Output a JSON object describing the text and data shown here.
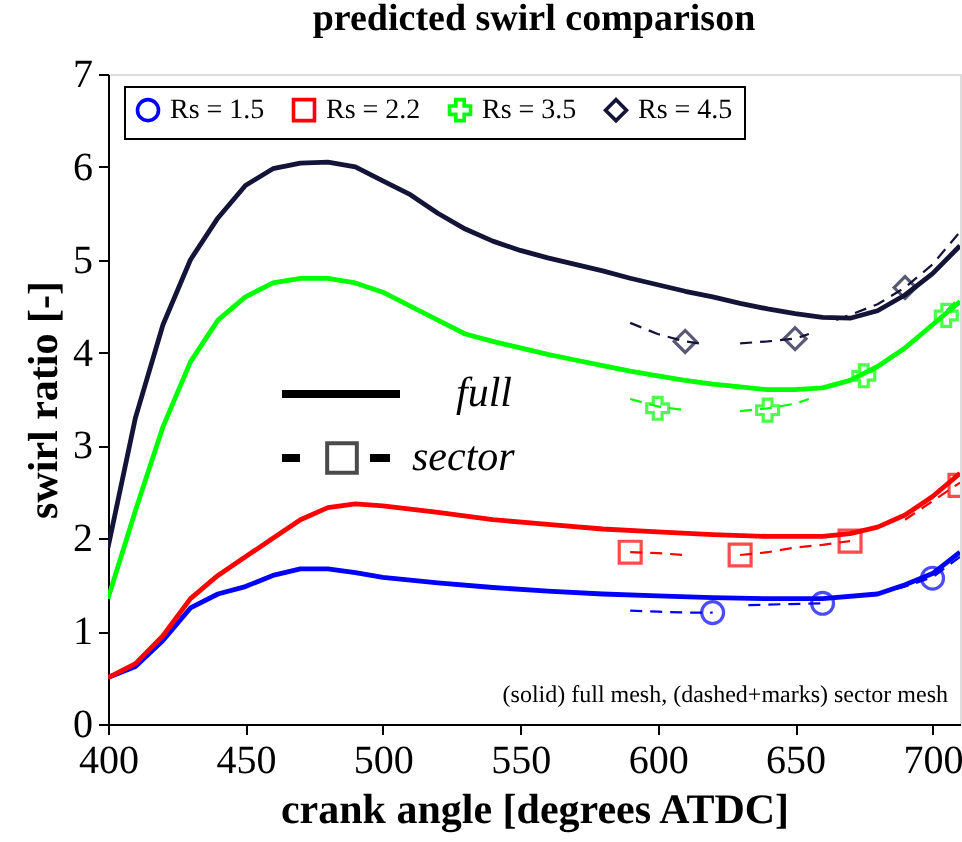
{
  "chart_data": {
    "type": "line",
    "title": "predicted swirl comparison",
    "xlabel": "crank angle [degrees ATDC]",
    "ylabel": "swirl ratio [-]",
    "xlim": [
      400,
      710
    ],
    "ylim": [
      0,
      7
    ],
    "xticks": [
      400,
      450,
      500,
      550,
      600,
      650,
      700
    ],
    "yticks": [
      0,
      1,
      2,
      3,
      4,
      5,
      6,
      7
    ],
    "grid": false,
    "legend": "top",
    "annotations": [
      "full",
      "sector",
      "(solid) full mesh, (dashed+marks) sector mesh"
    ],
    "series": [
      {
        "name": "Rs = 1.5",
        "color": "#0000ff",
        "line_style": "solid",
        "marker": "none",
        "x": [
          400,
          410,
          420,
          430,
          440,
          450,
          460,
          470,
          480,
          490,
          500,
          520,
          540,
          560,
          580,
          600,
          620,
          640,
          660,
          680,
          690,
          700,
          710
        ],
        "values": [
          0.5,
          0.62,
          0.9,
          1.25,
          1.4,
          1.48,
          1.6,
          1.67,
          1.67,
          1.63,
          1.58,
          1.52,
          1.47,
          1.43,
          1.4,
          1.38,
          1.36,
          1.35,
          1.35,
          1.4,
          1.5,
          1.62,
          1.85
        ]
      },
      {
        "name": "Rs = 2.2",
        "color": "#ff0000",
        "line_style": "solid",
        "marker": "none",
        "x": [
          400,
          410,
          420,
          430,
          440,
          450,
          460,
          470,
          480,
          490,
          500,
          520,
          540,
          560,
          580,
          600,
          620,
          640,
          660,
          670,
          680,
          690,
          700,
          710
        ],
        "values": [
          0.5,
          0.65,
          0.95,
          1.35,
          1.6,
          1.8,
          2.0,
          2.2,
          2.33,
          2.37,
          2.35,
          2.28,
          2.2,
          2.15,
          2.1,
          2.07,
          2.04,
          2.02,
          2.02,
          2.05,
          2.12,
          2.25,
          2.45,
          2.7
        ]
      },
      {
        "name": "Rs = 3.5",
        "color": "#00ff00",
        "line_style": "solid",
        "marker": "none",
        "x": [
          400,
          410,
          420,
          430,
          440,
          450,
          460,
          470,
          480,
          490,
          500,
          510,
          520,
          530,
          540,
          550,
          560,
          570,
          580,
          590,
          600,
          610,
          620,
          630,
          640,
          650,
          660,
          670,
          680,
          690,
          700,
          710
        ],
        "values": [
          1.35,
          2.3,
          3.2,
          3.9,
          4.35,
          4.6,
          4.75,
          4.8,
          4.8,
          4.75,
          4.65,
          4.5,
          4.35,
          4.2,
          4.12,
          4.05,
          3.98,
          3.92,
          3.86,
          3.8,
          3.75,
          3.7,
          3.66,
          3.63,
          3.6,
          3.6,
          3.62,
          3.7,
          3.85,
          4.05,
          4.3,
          4.55
        ]
      },
      {
        "name": "Rs = 4.5",
        "color": "#141438",
        "line_style": "solid",
        "marker": "none",
        "x": [
          400,
          410,
          420,
          430,
          440,
          450,
          460,
          470,
          480,
          490,
          500,
          510,
          520,
          530,
          540,
          550,
          560,
          570,
          580,
          590,
          600,
          610,
          620,
          630,
          640,
          650,
          660,
          670,
          680,
          690,
          700,
          710
        ],
        "values": [
          1.9,
          3.3,
          4.3,
          5.0,
          5.45,
          5.8,
          5.98,
          6.04,
          6.05,
          6.0,
          5.85,
          5.7,
          5.5,
          5.33,
          5.2,
          5.1,
          5.02,
          4.95,
          4.88,
          4.8,
          4.73,
          4.66,
          4.6,
          4.53,
          4.47,
          4.42,
          4.38,
          4.37,
          4.45,
          4.62,
          4.85,
          5.15
        ]
      },
      {
        "color": "#0000ff",
        "line_style": "dashed",
        "marker": "none",
        "x": [
          590,
          600,
          610,
          620,
          625,
          633,
          645,
          660,
          670,
          680,
          690,
          700,
          710
        ],
        "values": [
          1.22,
          1.21,
          1.2,
          1.2,
          null,
          1.28,
          1.29,
          1.3,
          null,
          1.4,
          1.48,
          1.58,
          1.8
        ]
      },
      {
        "color": "#ff0000",
        "line_style": "dashed",
        "marker": "none",
        "x": [
          590,
          600,
          610,
          620,
          630,
          640,
          650,
          660,
          670,
          680,
          690,
          700,
          710
        ],
        "values": [
          1.85,
          1.84,
          1.82,
          null,
          1.82,
          1.85,
          1.9,
          1.93,
          1.97,
          null,
          2.2,
          2.4,
          2.6
        ]
      },
      {
        "color": "#00ff00",
        "line_style": "dashed",
        "marker": "none",
        "x": [
          590,
          600,
          610,
          620,
          630,
          640,
          650,
          655,
          662,
          670,
          680,
          690,
          700,
          710
        ],
        "values": [
          3.5,
          3.42,
          3.38,
          null,
          3.37,
          3.4,
          3.45,
          3.5,
          null,
          3.7,
          3.85,
          4.05,
          4.3,
          4.6
        ]
      },
      {
        "color": "#141438",
        "line_style": "dashed",
        "marker": "none",
        "x": [
          590,
          600,
          610,
          615,
          622,
          630,
          640,
          650,
          655,
          658,
          665,
          680,
          690,
          700,
          710
        ],
        "values": [
          4.32,
          4.2,
          4.12,
          4.1,
          null,
          4.1,
          4.12,
          4.15,
          4.2,
          null,
          4.35,
          4.52,
          4.7,
          4.95,
          5.3
        ]
      },
      {
        "type": "scatter",
        "color": "#0000ff",
        "marker": "circle",
        "x": [
          620,
          660,
          700
        ],
        "values": [
          1.2,
          1.3,
          1.57
        ]
      },
      {
        "type": "scatter",
        "color": "#ff0000",
        "marker": "square",
        "x": [
          590,
          630,
          670,
          710
        ],
        "values": [
          1.85,
          1.82,
          1.97,
          2.57
        ]
      },
      {
        "type": "scatter",
        "color": "#00ff00",
        "marker": "cross",
        "x": [
          600,
          640,
          675,
          705
        ],
        "values": [
          3.4,
          3.38,
          3.75,
          4.4
        ]
      },
      {
        "type": "scatter",
        "color": "#141438",
        "marker": "diamond",
        "x": [
          610,
          650,
          690
        ],
        "values": [
          4.12,
          4.15,
          4.7
        ]
      }
    ]
  }
}
